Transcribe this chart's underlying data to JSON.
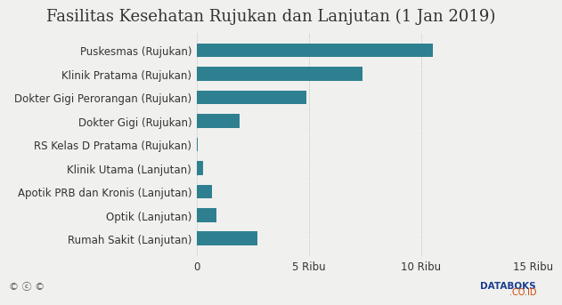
{
  "title": "Fasilitas Kesehatan Rujukan dan Lanjutan (1 Jan 2019)",
  "categories": [
    "Rumah Sakit (Lanjutan)",
    "Optik (Lanjutan)",
    "Apotik PRB dan Kronis (Lanjutan)",
    "Klinik Utama (Lanjutan)",
    "RS Kelas D Pratama (Rujukan)",
    "Dokter Gigi (Rujukan)",
    "Dokter Gigi Perorangan (Rujukan)",
    "Klinik Pratama (Rujukan)",
    "Puskesmas (Rujukan)"
  ],
  "values": [
    2700,
    900,
    700,
    280,
    30,
    1900,
    4900,
    7400,
    10500
  ],
  "bar_color": "#2e8090",
  "bg_color": "#f0f0ee",
  "title_fontsize": 13,
  "tick_fontsize": 8.5,
  "xlim": [
    0,
    15000
  ],
  "xticks": [
    0,
    5000,
    10000,
    15000
  ],
  "xticklabels": [
    "0",
    "5 Ribu",
    "10 Ribu",
    "15 Ribu"
  ]
}
